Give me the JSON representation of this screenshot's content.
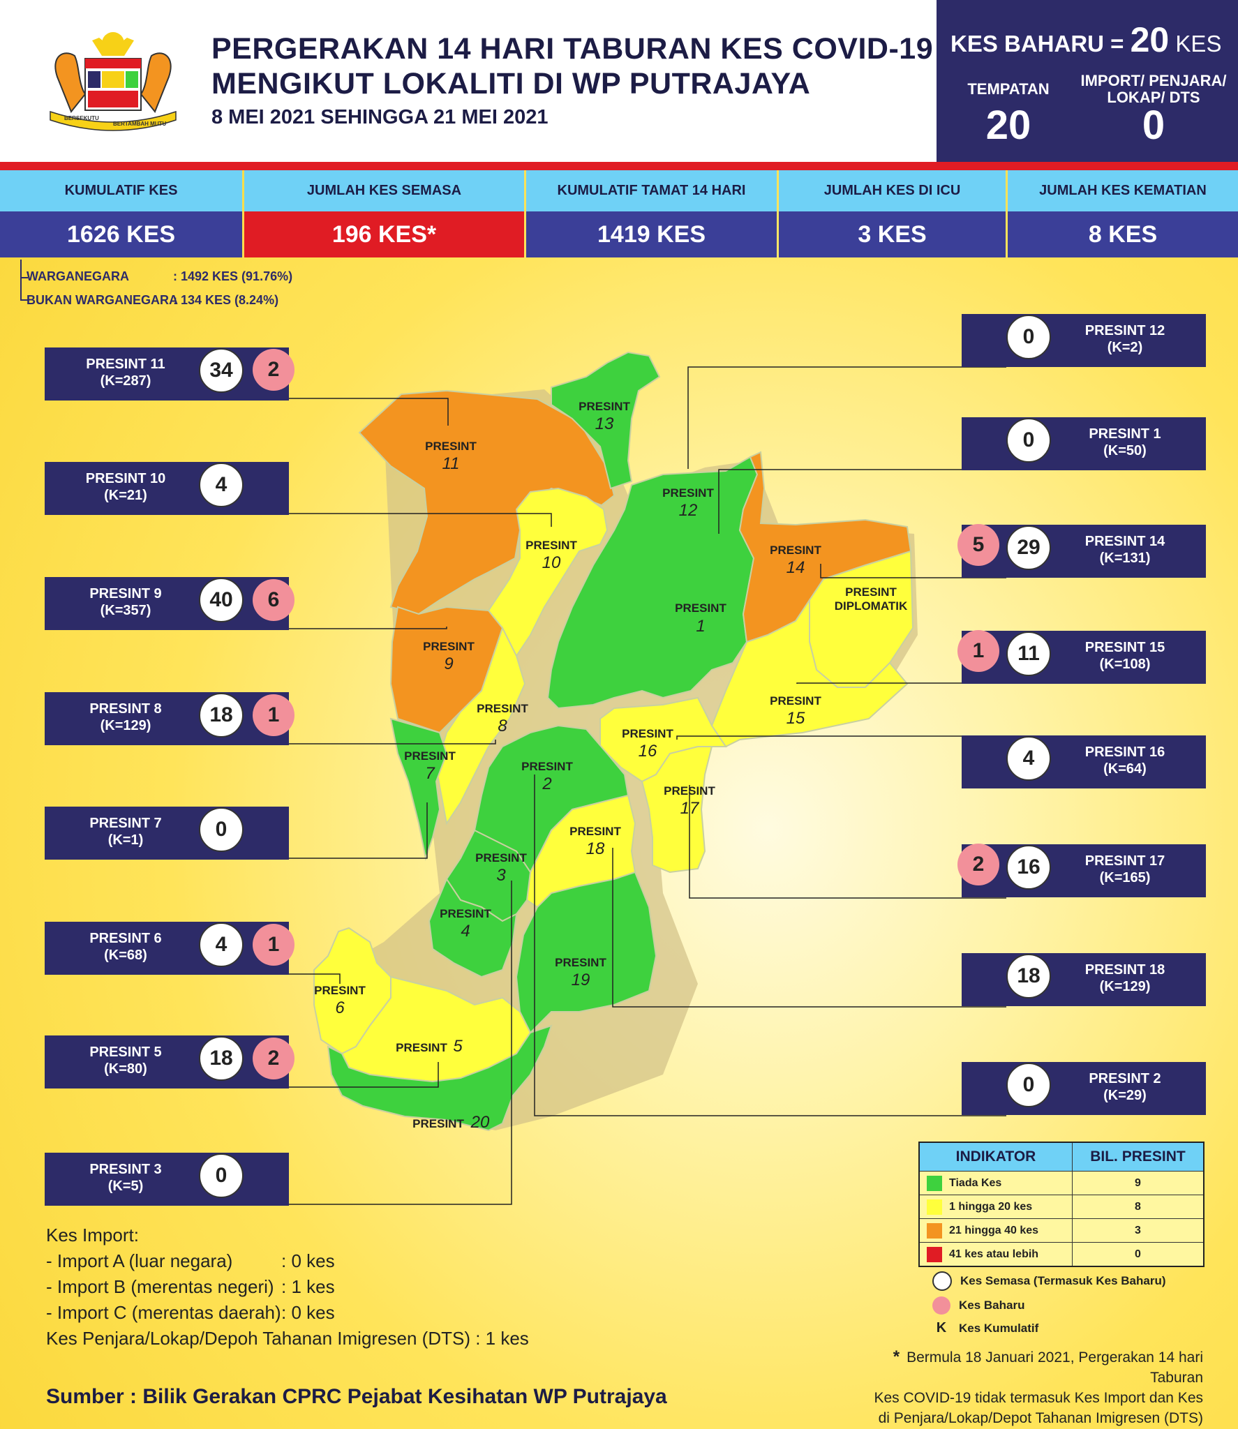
{
  "header": {
    "title_line1": "PERGERAKAN 14 HARI TABURAN KES COVID-19",
    "title_line2": "MENGIKUT LOKALITI DI WP PUTRAJAYA",
    "date_range": "8 MEI 2021 SEHINGGA 21 MEI 2021",
    "logo": "malaysia-coat-of-arms",
    "logo_motto_left": "BERSEKUTU",
    "logo_motto_right": "BERTAMBAH MUTU"
  },
  "new_cases": {
    "label": "KES BAHARU =",
    "value": "20",
    "unit": "KES",
    "local_label": "TEMPATAN",
    "local_value": "20",
    "import_label_line1": "IMPORT/ PENJARA/",
    "import_label_line2": "LOKAP/ DTS",
    "import_value": "0"
  },
  "stats": [
    {
      "label": "KUMULATIF KES",
      "value": "1626 KES"
    },
    {
      "label": "JUMLAH KES SEMASA",
      "value": "196 KES*"
    },
    {
      "label": "KUMULATIF TAMAT 14 HARI",
      "value": "1419 KES"
    },
    {
      "label": "JUMLAH KES DI ICU",
      "value": "3 KES"
    },
    {
      "label": "JUMLAH KES KEMATIAN",
      "value": "8 KES"
    }
  ],
  "nationality": {
    "citizen_label": "WARGANEGARA",
    "citizen_value": ": 1492 KES (91.76%)",
    "noncitizen_label": "BUKAN WARGANEGARA",
    "noncitizen_value": ": 134 KES (8.24%)"
  },
  "presints_left": [
    {
      "name": "PRESINT 11",
      "k": "(K=287)",
      "active": "34",
      "new": "2"
    },
    {
      "name": "PRESINT 10",
      "k": "(K=21)",
      "active": "4",
      "new": ""
    },
    {
      "name": "PRESINT 9",
      "k": "(K=357)",
      "active": "40",
      "new": "6"
    },
    {
      "name": "PRESINT 8",
      "k": "(K=129)",
      "active": "18",
      "new": "1"
    },
    {
      "name": "PRESINT 7",
      "k": "(K=1)",
      "active": "0",
      "new": ""
    },
    {
      "name": "PRESINT 6",
      "k": "(K=68)",
      "active": "4",
      "new": "1"
    },
    {
      "name": "PRESINT 5",
      "k": "(K=80)",
      "active": "18",
      "new": "2"
    },
    {
      "name": "PRESINT 3",
      "k": "(K=5)",
      "active": "0",
      "new": ""
    }
  ],
  "presints_right": [
    {
      "name": "PRESINT 12",
      "k": "(K=2)",
      "active": "0",
      "new": ""
    },
    {
      "name": "PRESINT 1",
      "k": "(K=50)",
      "active": "0",
      "new": ""
    },
    {
      "name": "PRESINT 14",
      "k": "(K=131)",
      "active": "29",
      "new": "5"
    },
    {
      "name": "PRESINT 15",
      "k": "(K=108)",
      "active": "11",
      "new": "1"
    },
    {
      "name": "PRESINT 16",
      "k": "(K=64)",
      "active": "4",
      "new": ""
    },
    {
      "name": "PRESINT 17",
      "k": "(K=165)",
      "active": "16",
      "new": "2"
    },
    {
      "name": "PRESINT 18",
      "k": "(K=129)",
      "active": "18",
      "new": ""
    },
    {
      "name": "PRESINT 2",
      "k": "(K=29)",
      "active": "0",
      "new": ""
    }
  ],
  "map_labels": {
    "presint": "PRESINT",
    "diplomatik": "DIPLOMATIK",
    "numbers": [
      "1",
      "2",
      "3",
      "4",
      "5",
      "6",
      "7",
      "8",
      "9",
      "10",
      "11",
      "12",
      "13",
      "14",
      "15",
      "16",
      "17",
      "18",
      "19",
      "20"
    ]
  },
  "colors": {
    "tiada": "#3ed13e",
    "satu_20": "#ffff3c",
    "dua_puluh_satu_40": "#f39420",
    "empat_puluh_satu": "#e01c24",
    "navy": "#2d2b68",
    "header_blue": "#6fd1f6",
    "new_case_pink": "#f2909a"
  },
  "legend": {
    "col1": "INDIKATOR",
    "col2": "BIL. PRESINT",
    "rows": [
      {
        "label": "Tiada Kes",
        "count": "9"
      },
      {
        "label": "1 hingga 20 kes",
        "count": "8"
      },
      {
        "label": "21 hingga 40 kes",
        "count": "3"
      },
      {
        "label": "41 kes atau lebih",
        "count": "0"
      }
    ],
    "active_label": "Kes Semasa (Termasuk Kes Baharu)",
    "new_label": "Kes Baharu",
    "k_symbol": "K",
    "k_label": "Kes Kumulatif"
  },
  "imports": {
    "title": "Kes Import:",
    "rows": [
      {
        "label": "- Import A (luar negara)",
        "value": ": 0 kes"
      },
      {
        "label": "- Import B (merentas negeri)",
        "value": ": 1 kes"
      },
      {
        "label": "- Import C (merentas daerah)",
        "value": ": 0 kes"
      }
    ],
    "prison": "Kes Penjara/Lokap/Depoh Tahanan Imigresen (DTS) : 1 kes"
  },
  "note": {
    "star": "*",
    "line1": "Bermula 18 Januari 2021, Pergerakan 14 hari Taburan",
    "line2": "Kes COVID-19 tidak termasuk Kes Import dan Kes",
    "line3": "di Penjara/Lokap/Depot Tahanan Imigresen (DTS)"
  },
  "source": "Sumber : Bilik Gerakan CPRC Pejabat Kesihatan WP Putrajaya"
}
